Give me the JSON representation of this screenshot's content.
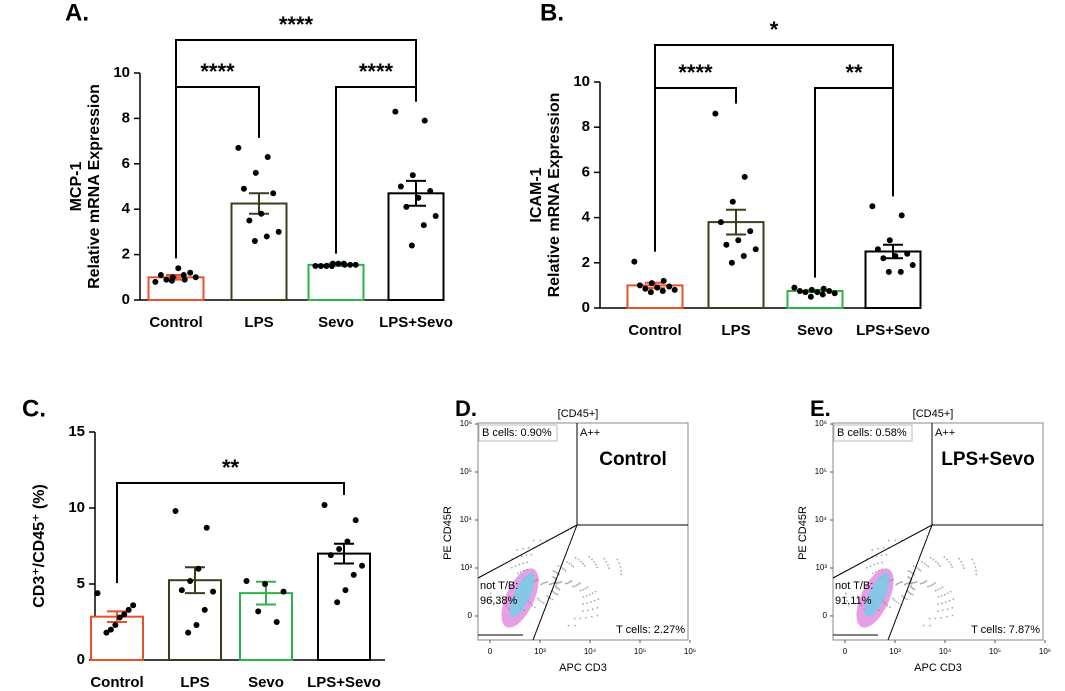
{
  "chart_data": [
    {
      "type": "bar",
      "panel": "A.",
      "ylabel": [
        "MCP-1",
        "Relative mRNA Expression"
      ],
      "categories": [
        "Control",
        "LPS",
        "Sevo",
        "LPS+Sevo"
      ],
      "colors": [
        "#e8502a",
        "#3d3d1f",
        "#2db34a",
        "#000000"
      ],
      "values": [
        1.0,
        4.25,
        1.55,
        4.7
      ],
      "errors": [
        0.1,
        0.45,
        0.05,
        0.55
      ],
      "points": [
        [
          0.8,
          0.9,
          1.0,
          1.1,
          1.2,
          1.4,
          0.9,
          1.0,
          1.1,
          0.85
        ],
        [
          6.7,
          6.3,
          5.6,
          4.9,
          4.7,
          3.8,
          3.5,
          3.0,
          2.8,
          2.6
        ],
        [
          1.5,
          1.55,
          1.6,
          1.5,
          1.55,
          1.6,
          1.5,
          1.55,
          1.6,
          1.5
        ],
        [
          8.3,
          7.9,
          5.5,
          5.0,
          4.8,
          4.5,
          4.1,
          3.7,
          3.3,
          2.4
        ]
      ],
      "ylim": [
        0,
        10
      ],
      "yticks": [
        0,
        2,
        4,
        6,
        8,
        10
      ],
      "comparisons": [
        {
          "from": "Control",
          "to": "LPS",
          "label": "****"
        },
        {
          "from": "Sevo",
          "to": "LPS+Sevo",
          "label": "****"
        },
        {
          "from": "Control",
          "to": "LPS+Sevo",
          "label": "****"
        }
      ]
    },
    {
      "type": "bar",
      "panel": "B.",
      "ylabel": [
        "ICAM-1",
        "Relative mRNA Expression"
      ],
      "categories": [
        "Control",
        "LPS",
        "Sevo",
        "LPS+Sevo"
      ],
      "colors": [
        "#e8502a",
        "#3d3d1f",
        "#2db34a",
        "#000000"
      ],
      "values": [
        1.0,
        3.8,
        0.75,
        2.5
      ],
      "errors": [
        0.12,
        0.55,
        0.05,
        0.3
      ],
      "points": [
        [
          2.05,
          1.2,
          1.1,
          1.0,
          0.95,
          0.9,
          0.85,
          0.8,
          0.75,
          0.7
        ],
        [
          8.6,
          5.8,
          4.7,
          3.8,
          3.4,
          3.0,
          2.8,
          2.6,
          2.3,
          2.0
        ],
        [
          0.9,
          0.85,
          0.8,
          0.75,
          0.75,
          0.7,
          0.7,
          0.65,
          0.6,
          0.5
        ],
        [
          4.5,
          4.1,
          3.0,
          2.6,
          2.4,
          2.3,
          2.2,
          1.9,
          1.6,
          1.6
        ]
      ],
      "ylim": [
        0,
        10
      ],
      "yticks": [
        0,
        2,
        4,
        6,
        8,
        10
      ],
      "comparisons": [
        {
          "from": "Control",
          "to": "LPS",
          "label": "****"
        },
        {
          "from": "Sevo",
          "to": "LPS+Sevo",
          "label": "**"
        },
        {
          "from": "Control",
          "to": "LPS+Sevo",
          "label": "*"
        }
      ]
    },
    {
      "type": "bar",
      "panel": "C.",
      "ylabel": [
        "CD3⁺/CD45⁺ (%)"
      ],
      "categories": [
        "Control",
        "LPS",
        "Sevo",
        "LPS+Sevo"
      ],
      "colors": [
        "#e8502a",
        "#3d3d1f",
        "#2db34a",
        "#000000"
      ],
      "values": [
        2.85,
        5.25,
        4.4,
        7.0
      ],
      "errors": [
        0.35,
        0.85,
        0.75,
        0.65
      ],
      "points": [
        [
          4.4,
          3.6,
          3.3,
          3.0,
          2.8,
          2.3,
          2.0,
          1.8
        ],
        [
          9.8,
          8.7,
          6.0,
          5.2,
          4.6,
          4.5,
          3.3,
          2.3,
          1.8
        ],
        [
          5.2,
          5.0,
          4.5,
          3.2,
          2.5
        ],
        [
          10.2,
          9.2,
          7.8,
          7.3,
          6.9,
          6.2,
          5.6,
          4.6,
          3.8
        ]
      ],
      "ylim": [
        0,
        15
      ],
      "yticks": [
        0,
        5,
        10,
        15
      ],
      "comparisons": [
        {
          "from": "Control",
          "to": "LPS+Sevo",
          "label": "**"
        }
      ]
    },
    {
      "type": "flow",
      "panel": "D.",
      "title": "[CD45+]",
      "sample": "Control",
      "xlabel": "APC CD3",
      "ylabel": "PE CD45R",
      "xticks": [
        {
          "value": 0,
          "label": "0"
        },
        {
          "value": 1000,
          "label": "10³"
        },
        {
          "value": 10000,
          "label": "10⁴"
        },
        {
          "value": 100000,
          "label": "10⁵"
        },
        {
          "value": 1000000,
          "label": "10⁶"
        }
      ],
      "yticks": [
        {
          "value": 0,
          "label": "0"
        },
        {
          "value": 1000,
          "label": "10³"
        },
        {
          "value": 10000,
          "label": "10⁴"
        },
        {
          "value": 100000,
          "label": "10⁵"
        },
        {
          "value": 1000000,
          "label": "10⁶"
        }
      ],
      "gates": {
        "b_cells": "B cells: 0.90%",
        "double": "A++",
        "not_tb": [
          "not T/B:",
          "96.38%"
        ],
        "t_cells": "T cells: 2.27%"
      }
    },
    {
      "type": "flow",
      "panel": "E.",
      "title": "[CD45+]",
      "sample": "LPS+Sevo",
      "xlabel": "APC CD3",
      "ylabel": "PE CD45R",
      "xticks": [
        {
          "value": 0,
          "label": "0"
        },
        {
          "value": 1000,
          "label": "10³"
        },
        {
          "value": 10000,
          "label": "10⁴"
        },
        {
          "value": 100000,
          "label": "10⁵"
        },
        {
          "value": 1000000,
          "label": "10⁶"
        }
      ],
      "yticks": [
        {
          "value": 0,
          "label": "0"
        },
        {
          "value": 1000,
          "label": "10³"
        },
        {
          "value": 10000,
          "label": "10⁴"
        },
        {
          "value": 100000,
          "label": "10⁵"
        },
        {
          "value": 1000000,
          "label": "10⁶"
        }
      ],
      "gates": {
        "b_cells": "B cells: 0.58%",
        "double": "A++",
        "not_tb": [
          "not T/B:",
          "91.11%"
        ],
        "t_cells": "T cells: 7.87%"
      }
    }
  ]
}
